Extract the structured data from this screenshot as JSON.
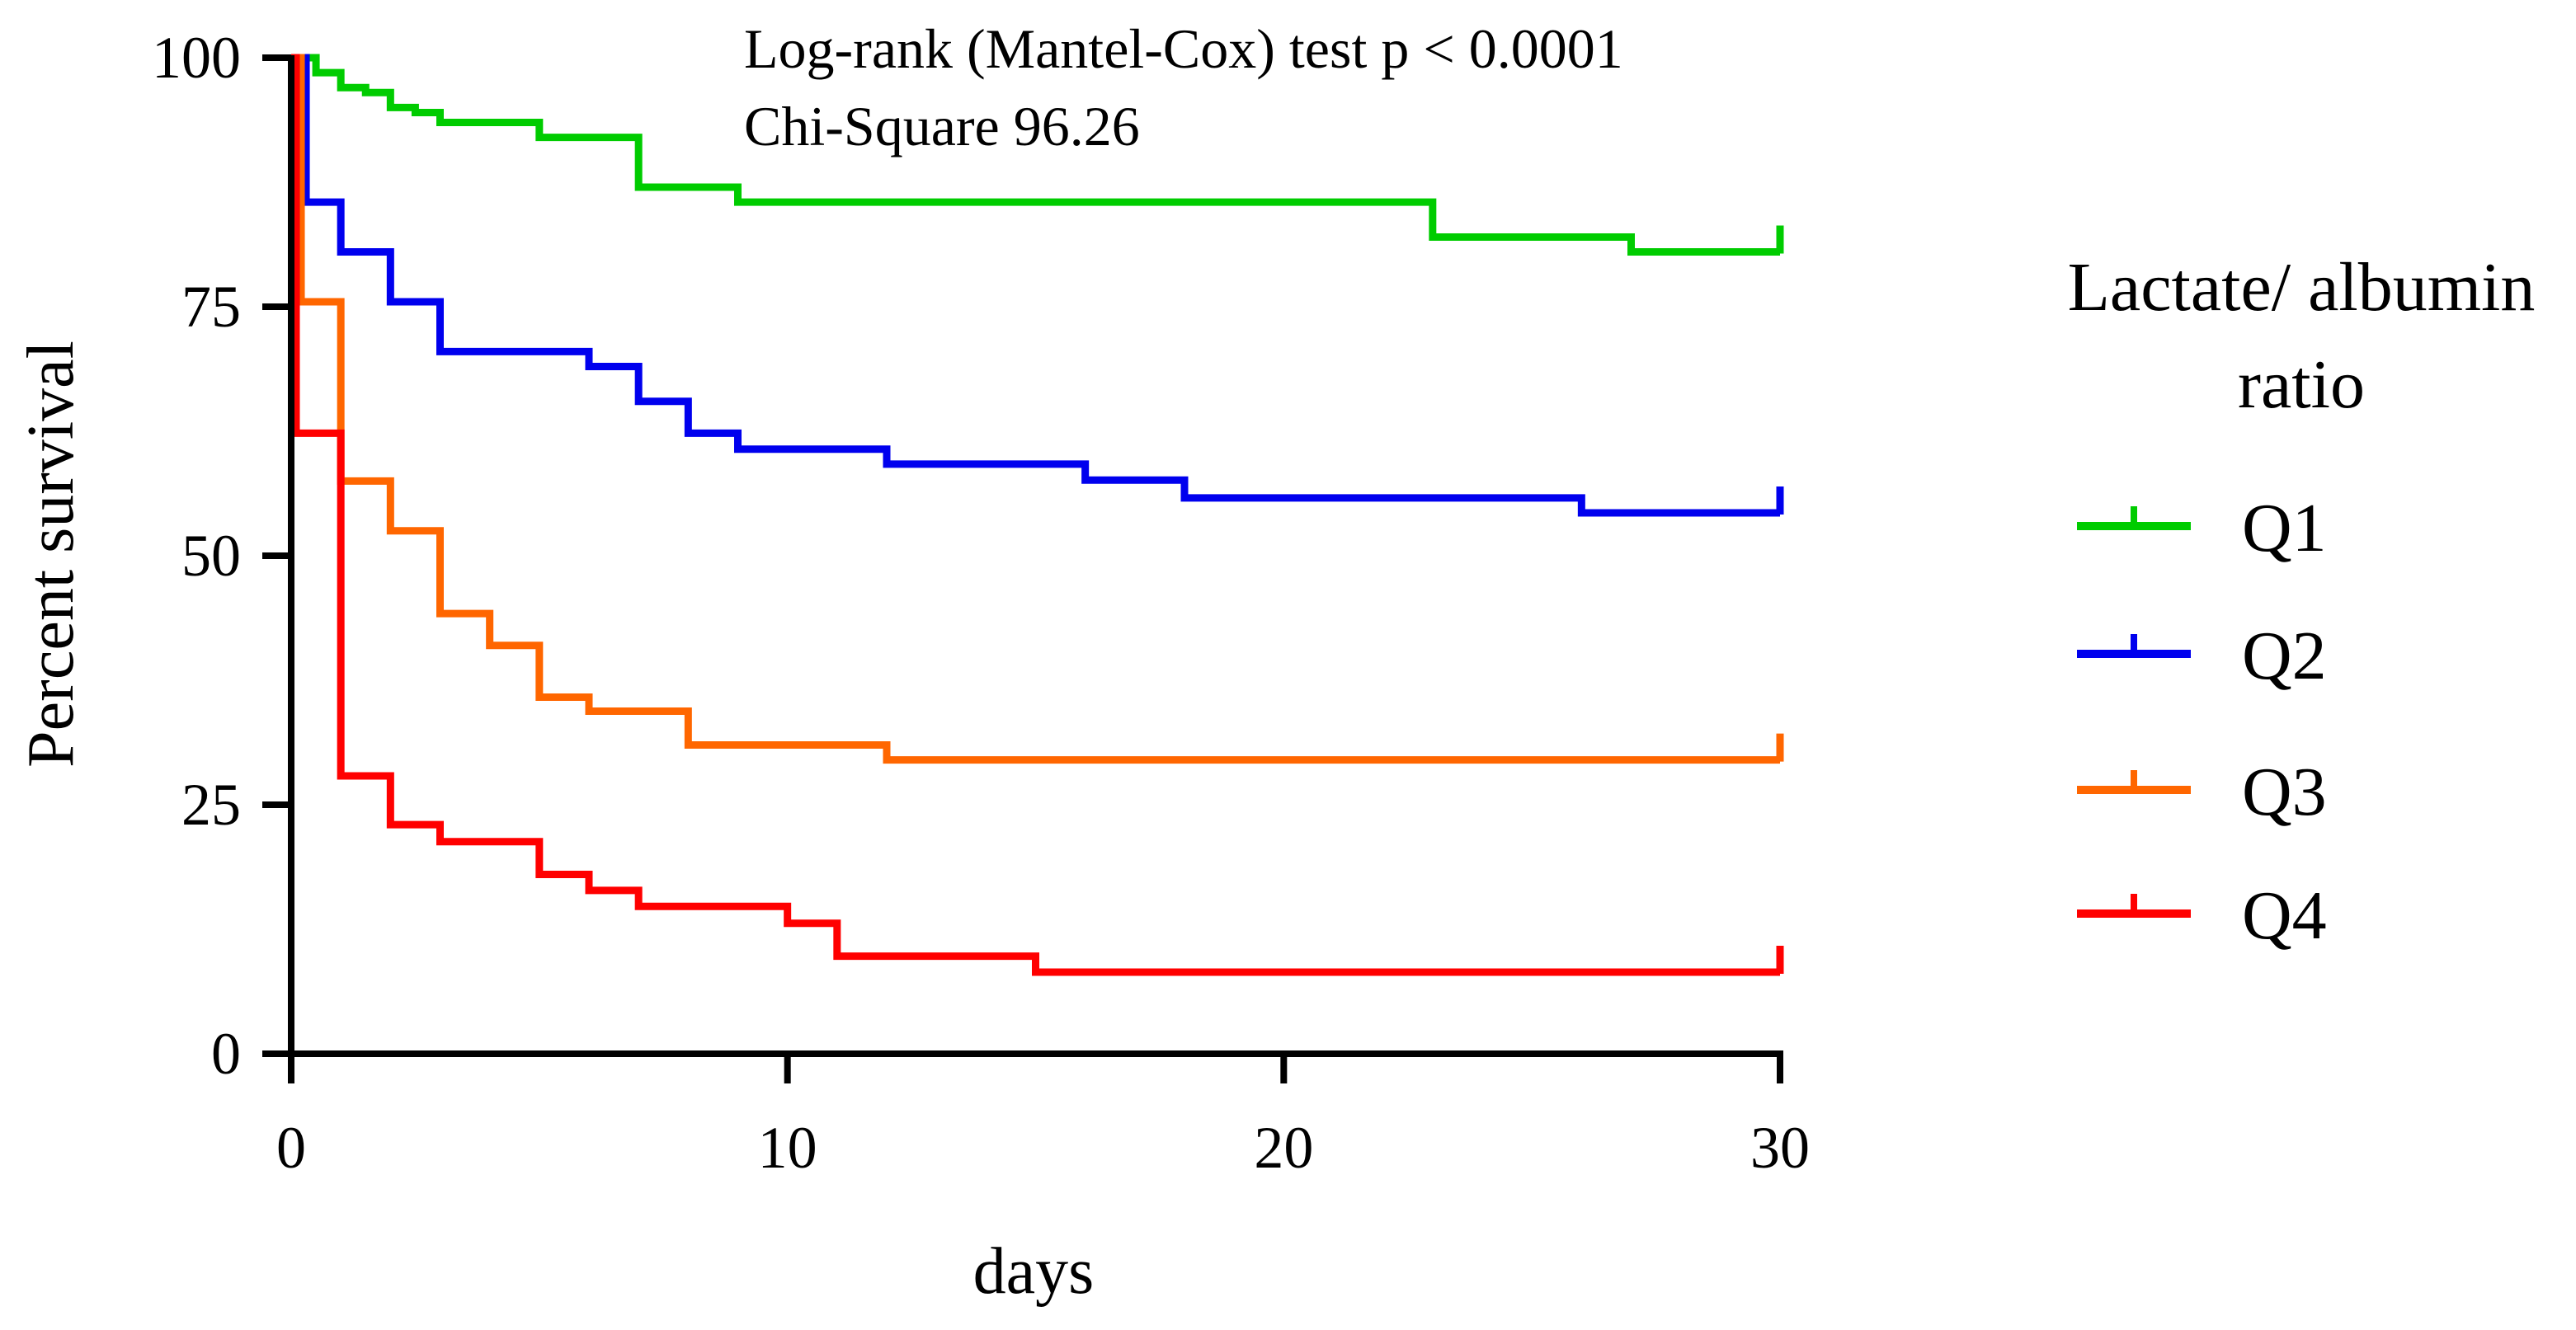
{
  "chart_data": {
    "type": "line",
    "subtype": "kaplan-meier-step",
    "annotation_lines": [
      "Log-rank (Mantel-Cox) test p < 0.0001",
      "Chi-Square 96.26"
    ],
    "xlabel": "days",
    "ylabel": "Percent survival",
    "xlim": [
      0,
      30
    ],
    "ylim": [
      0,
      100
    ],
    "xticks": [
      0,
      10,
      20,
      30
    ],
    "yticks": [
      0,
      25,
      50,
      75,
      100
    ],
    "grid": false,
    "legend": {
      "title_lines": [
        "Lactate/ albumin",
        "ratio"
      ],
      "position": "right"
    },
    "series": [
      {
        "name": "Q1",
        "color": "#00cc00",
        "x": [
          0,
          0.5,
          1,
          1.5,
          2,
          2.5,
          3,
          5,
          7,
          9,
          23,
          27,
          30
        ],
        "y": [
          100,
          98.5,
          97,
          96.5,
          95,
          94.5,
          93.5,
          92,
          87,
          85.5,
          82,
          80.5,
          80.5
        ]
      },
      {
        "name": "Q2",
        "color": "#0000ee",
        "x": [
          0,
          0.3,
          1,
          2,
          3,
          6,
          7,
          8,
          9,
          12,
          16,
          18,
          26,
          30
        ],
        "y": [
          100,
          85.5,
          80.5,
          75.5,
          70.5,
          69,
          65.5,
          62.3,
          60.7,
          59.2,
          57.6,
          55.8,
          54.3,
          54.3
        ],
        "censor_x": [
          30
        ]
      },
      {
        "name": "Q3",
        "color": "#ff6600",
        "x": [
          0,
          0.2,
          1,
          2,
          3,
          4,
          5,
          6,
          8,
          12,
          30
        ],
        "y": [
          100,
          75.5,
          57.5,
          52.5,
          44.2,
          41,
          35.8,
          34.4,
          31,
          29.5,
          29.5
        ]
      },
      {
        "name": "Q4",
        "color": "#ff0000",
        "x": [
          0,
          0.1,
          1,
          2,
          3,
          5,
          6,
          7,
          10,
          11,
          15,
          30
        ],
        "y": [
          100,
          62.3,
          27.9,
          23,
          21.3,
          18,
          16.4,
          14.8,
          13.1,
          9.8,
          8.2,
          8.2
        ]
      }
    ]
  }
}
